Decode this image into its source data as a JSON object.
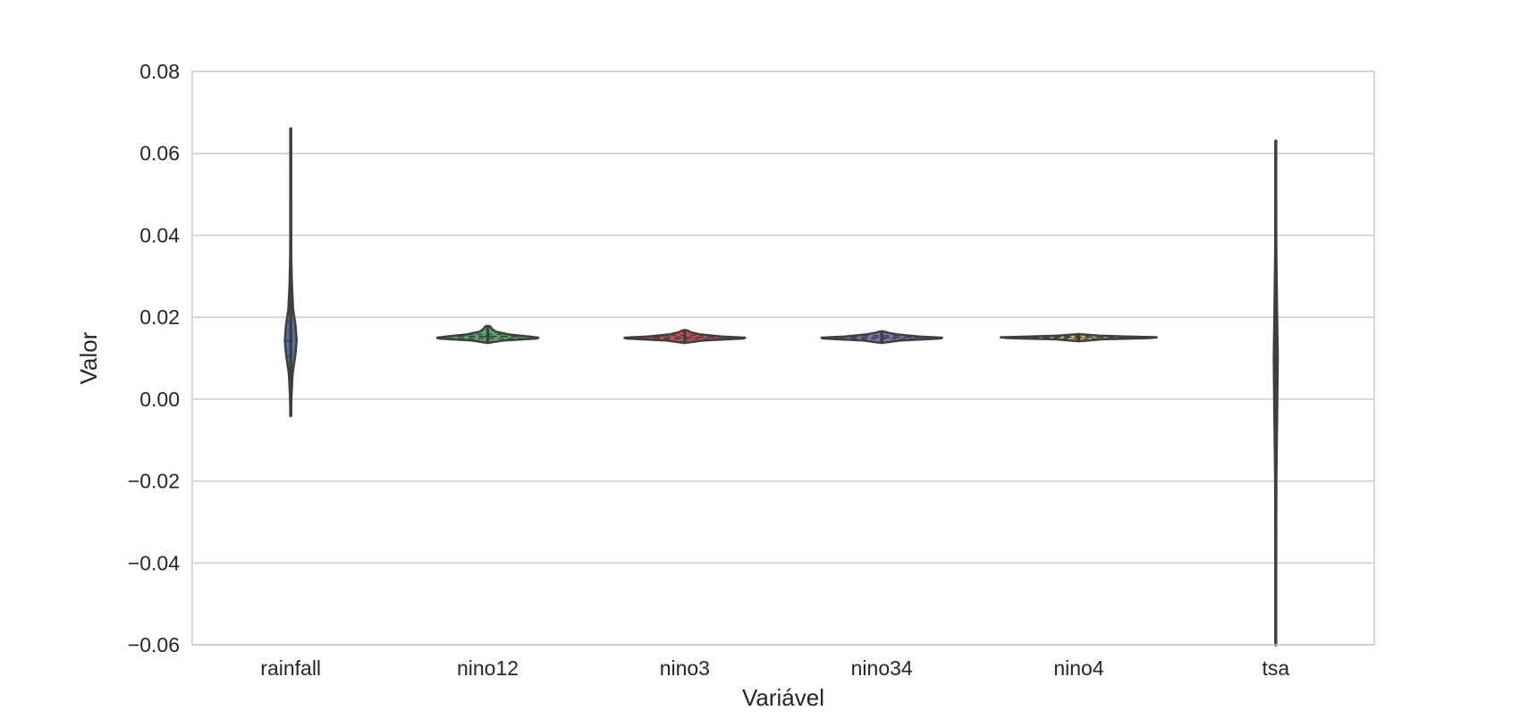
{
  "chart_data": {
    "type": "violin",
    "title": "",
    "xlabel": "Variável",
    "ylabel": "Valor",
    "ylim": [
      -0.06,
      0.08
    ],
    "yticks": [
      {
        "value": -0.06,
        "label": "−0.06"
      },
      {
        "value": -0.04,
        "label": "−0.04"
      },
      {
        "value": -0.02,
        "label": "−0.02"
      },
      {
        "value": 0.0,
        "label": "0.00"
      },
      {
        "value": 0.02,
        "label": "0.02"
      },
      {
        "value": 0.04,
        "label": "0.04"
      },
      {
        "value": 0.06,
        "label": "0.06"
      },
      {
        "value": 0.08,
        "label": "0.08"
      }
    ],
    "grid": true,
    "categories": [
      "rainfall",
      "nino12",
      "nino3",
      "nino34",
      "nino4",
      "tsa"
    ],
    "series": [
      {
        "category": "rainfall",
        "color": "#4c72b0",
        "min": -0.004,
        "max": 0.066,
        "q1": 0.0105,
        "median": 0.0143,
        "q3": 0.0188,
        "density_width": 0.06,
        "density_profile": [
          [
            -0.004,
            0.05
          ],
          [
            0.0,
            0.1
          ],
          [
            0.006,
            0.3
          ],
          [
            0.011,
            0.8
          ],
          [
            0.0143,
            1.0
          ],
          [
            0.018,
            0.8
          ],
          [
            0.022,
            0.4
          ],
          [
            0.028,
            0.2
          ],
          [
            0.035,
            0.08
          ],
          [
            0.045,
            0.04
          ],
          [
            0.055,
            0.025
          ],
          [
            0.066,
            0.02
          ]
        ]
      },
      {
        "category": "nino12",
        "color": "#55a868",
        "min": 0.0138,
        "max": 0.0178,
        "q1": 0.0148,
        "median": 0.0153,
        "q3": 0.0158,
        "density_width": 0.52,
        "density_profile": [
          [
            0.0138,
            0.05
          ],
          [
            0.0143,
            0.3
          ],
          [
            0.0148,
            0.95
          ],
          [
            0.015,
            1.0
          ],
          [
            0.0153,
            0.8
          ],
          [
            0.0158,
            0.4
          ],
          [
            0.0165,
            0.15
          ],
          [
            0.0172,
            0.08
          ],
          [
            0.0178,
            0.04
          ]
        ]
      },
      {
        "category": "nino3",
        "color": "#c44e52",
        "min": 0.0138,
        "max": 0.0168,
        "q1": 0.0147,
        "median": 0.0151,
        "q3": 0.0156,
        "density_width": 0.62,
        "density_profile": [
          [
            0.0138,
            0.05
          ],
          [
            0.0143,
            0.3
          ],
          [
            0.0148,
            0.95
          ],
          [
            0.015,
            1.0
          ],
          [
            0.0153,
            0.6
          ],
          [
            0.0158,
            0.25
          ],
          [
            0.0163,
            0.1
          ],
          [
            0.0168,
            0.04
          ]
        ]
      },
      {
        "category": "nino34",
        "color": "#8172b2",
        "min": 0.0138,
        "max": 0.0165,
        "q1": 0.0147,
        "median": 0.0151,
        "q3": 0.0155,
        "density_width": 0.62,
        "density_profile": [
          [
            0.0138,
            0.05
          ],
          [
            0.0143,
            0.3
          ],
          [
            0.0148,
            0.95
          ],
          [
            0.015,
            1.0
          ],
          [
            0.0153,
            0.6
          ],
          [
            0.0158,
            0.25
          ],
          [
            0.0162,
            0.1
          ],
          [
            0.0165,
            0.04
          ]
        ]
      },
      {
        "category": "nino4",
        "color": "#ccb974",
        "min": 0.0142,
        "max": 0.0158,
        "q1": 0.0148,
        "median": 0.0151,
        "q3": 0.0154,
        "density_width": 0.8,
        "density_profile": [
          [
            0.0142,
            0.05
          ],
          [
            0.0146,
            0.3
          ],
          [
            0.0149,
            0.9
          ],
          [
            0.0151,
            1.0
          ],
          [
            0.0153,
            0.6
          ],
          [
            0.0155,
            0.25
          ],
          [
            0.0158,
            0.05
          ]
        ]
      },
      {
        "category": "tsa",
        "color": "#64b5cd",
        "min": -0.06,
        "max": 0.063,
        "q1": -0.003,
        "median": 0.005,
        "q3": 0.016,
        "density_width": 0.02,
        "density_profile": [
          [
            -0.06,
            0.05
          ],
          [
            -0.04,
            0.1
          ],
          [
            -0.02,
            0.3
          ],
          [
            0.0,
            0.8
          ],
          [
            0.01,
            1.0
          ],
          [
            0.02,
            0.7
          ],
          [
            0.035,
            0.3
          ],
          [
            0.05,
            0.1
          ],
          [
            0.063,
            0.05
          ]
        ]
      }
    ]
  }
}
